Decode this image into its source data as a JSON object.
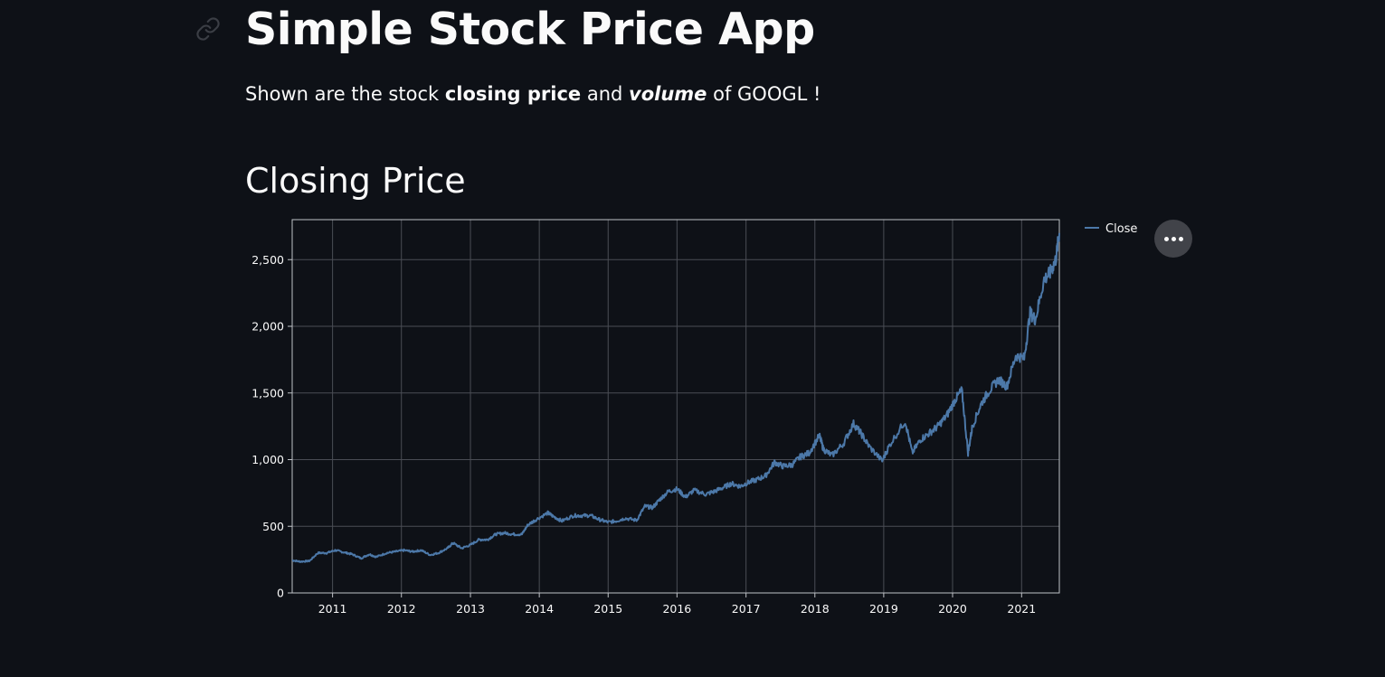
{
  "header": {
    "title": "Simple Stock Price App",
    "subtitle": {
      "part1": "Shown are the stock ",
      "bold1": "closing price",
      "part2": " and ",
      "bold_italic": "volume",
      "part3": " of GOOGL !"
    }
  },
  "section": {
    "title": "Closing Price"
  },
  "icons": {
    "anchor": "link-icon",
    "menu": "ellipsis-icon"
  },
  "colors": {
    "background": "#0e1117",
    "series": "#4c78a8",
    "grid": "#4a4d55",
    "axis": "#bfc2c7",
    "text": "#fafafa"
  },
  "chart_data": {
    "type": "line",
    "title": "",
    "xlabel": "",
    "ylabel": "",
    "x_ticks": [
      "2011",
      "2012",
      "2013",
      "2014",
      "2015",
      "2016",
      "2017",
      "2018",
      "2019",
      "2020",
      "2021"
    ],
    "y_ticks": [
      "0",
      "500",
      "1,000",
      "1,500",
      "2,000",
      "2,500"
    ],
    "xlim": [
      "2010-06-01",
      "2021-07-20"
    ],
    "ylim": [
      0,
      2800
    ],
    "grid": true,
    "legend": "top-right outside",
    "series": [
      {
        "name": "Close",
        "color": "#4c78a8",
        "points": [
          [
            "2010-06-01",
            245
          ],
          [
            "2010-07-15",
            235
          ],
          [
            "2010-09-01",
            240
          ],
          [
            "2010-10-15",
            300
          ],
          [
            "2010-12-01",
            300
          ],
          [
            "2011-01-15",
            320
          ],
          [
            "2011-03-01",
            305
          ],
          [
            "2011-04-15",
            290
          ],
          [
            "2011-06-01",
            260
          ],
          [
            "2011-07-15",
            290
          ],
          [
            "2011-08-20",
            270
          ],
          [
            "2011-10-15",
            300
          ],
          [
            "2011-12-01",
            310
          ],
          [
            "2012-01-15",
            320
          ],
          [
            "2012-03-01",
            310
          ],
          [
            "2012-04-15",
            320
          ],
          [
            "2012-06-01",
            285
          ],
          [
            "2012-07-15",
            300
          ],
          [
            "2012-09-01",
            335
          ],
          [
            "2012-10-01",
            375
          ],
          [
            "2012-11-15",
            335
          ],
          [
            "2013-01-01",
            360
          ],
          [
            "2013-02-15",
            400
          ],
          [
            "2013-04-01",
            400
          ],
          [
            "2013-05-15",
            440
          ],
          [
            "2013-07-01",
            450
          ],
          [
            "2013-08-15",
            440
          ],
          [
            "2013-10-01",
            440
          ],
          [
            "2013-11-01",
            510
          ],
          [
            "2013-12-15",
            550
          ],
          [
            "2014-02-15",
            600
          ],
          [
            "2014-03-15",
            575
          ],
          [
            "2014-05-01",
            540
          ],
          [
            "2014-07-01",
            580
          ],
          [
            "2014-08-15",
            580
          ],
          [
            "2014-10-01",
            580
          ],
          [
            "2014-11-15",
            550
          ],
          [
            "2015-01-01",
            530
          ],
          [
            "2015-02-15",
            540
          ],
          [
            "2015-04-01",
            560
          ],
          [
            "2015-06-01",
            545
          ],
          [
            "2015-07-15",
            650
          ],
          [
            "2015-08-25",
            640
          ],
          [
            "2015-10-01",
            700
          ],
          [
            "2015-11-15",
            760
          ],
          [
            "2016-01-01",
            780
          ],
          [
            "2016-02-15",
            720
          ],
          [
            "2016-04-01",
            770
          ],
          [
            "2016-06-01",
            740
          ],
          [
            "2016-07-15",
            760
          ],
          [
            "2016-09-01",
            790
          ],
          [
            "2016-10-15",
            820
          ],
          [
            "2016-12-01",
            800
          ],
          [
            "2017-01-15",
            830
          ],
          [
            "2017-03-01",
            850
          ],
          [
            "2017-04-15",
            880
          ],
          [
            "2017-06-01",
            980
          ],
          [
            "2017-07-15",
            950
          ],
          [
            "2017-09-01",
            960
          ],
          [
            "2017-10-15",
            1020
          ],
          [
            "2017-12-01",
            1050
          ],
          [
            "2018-01-25",
            1180
          ],
          [
            "2018-02-15",
            1080
          ],
          [
            "2018-04-01",
            1030
          ],
          [
            "2018-06-01",
            1120
          ],
          [
            "2018-07-25",
            1270
          ],
          [
            "2018-09-01",
            1200
          ],
          [
            "2018-10-15",
            1100
          ],
          [
            "2018-12-24",
            990
          ],
          [
            "2019-02-01",
            1110
          ],
          [
            "2019-04-25",
            1290
          ],
          [
            "2019-06-01",
            1050
          ],
          [
            "2019-07-15",
            1150
          ],
          [
            "2019-09-01",
            1200
          ],
          [
            "2019-10-15",
            1250
          ],
          [
            "2019-12-01",
            1330
          ],
          [
            "2020-01-15",
            1450
          ],
          [
            "2020-02-19",
            1520
          ],
          [
            "2020-03-23",
            1050
          ],
          [
            "2020-04-15",
            1250
          ],
          [
            "2020-06-01",
            1420
          ],
          [
            "2020-07-15",
            1520
          ],
          [
            "2020-09-01",
            1600
          ],
          [
            "2020-10-15",
            1550
          ],
          [
            "2020-12-01",
            1780
          ],
          [
            "2021-01-15",
            1760
          ],
          [
            "2021-02-15",
            2100
          ],
          [
            "2021-03-15",
            2050
          ],
          [
            "2021-04-30",
            2350
          ],
          [
            "2021-06-01",
            2400
          ],
          [
            "2021-07-01",
            2500
          ],
          [
            "2021-07-20",
            2700
          ]
        ]
      }
    ]
  }
}
